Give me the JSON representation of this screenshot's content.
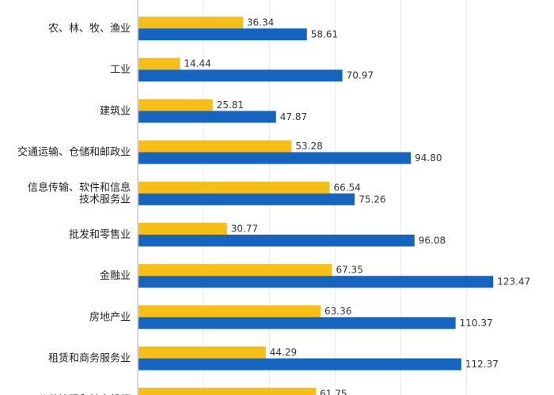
{
  "colors": {
    "series_a": "#F7BE16",
    "series_b": "#1565C0"
  },
  "chart_data": {
    "type": "bar",
    "orientation": "horizontal",
    "categories": [
      "农、林、牧、渔业",
      "工业",
      "建筑业",
      "交通运输、仓储和邮政业",
      "信息传输、软件和信息技术服务业",
      "批发和零售业",
      "金融业",
      "房地产业",
      "租赁和商务服务业",
      "公共管理和社会组织"
    ],
    "category_lines": [
      [
        "农、林、牧、渔业"
      ],
      [
        "工业"
      ],
      [
        "建筑业"
      ],
      [
        "交通运输、仓储和邮政业"
      ],
      [
        "信息传输、软件和信息",
        "技术服务业"
      ],
      [
        "批发和零售业"
      ],
      [
        "金融业"
      ],
      [
        "房地产业"
      ],
      [
        "租赁和商务服务业"
      ],
      [
        "公共管理和社会组织"
      ]
    ],
    "series": [
      {
        "values": [
          36.34,
          14.44,
          25.81,
          53.28,
          66.54,
          30.77,
          67.35,
          63.36,
          44.29,
          61.75
        ]
      },
      {
        "values": [
          58.61,
          70.97,
          47.87,
          94.8,
          75.26,
          96.08,
          123.47,
          110.37,
          112.37,
          null
        ]
      }
    ],
    "value_labels": [
      [
        "36.34",
        "14.44",
        "25.81",
        "53.28",
        "66.54",
        "30.77",
        "67.35",
        "63.36",
        "44.29",
        "61.75"
      ],
      [
        "58.61",
        "70.97",
        "47.87",
        "94.80",
        "75.26",
        "96.08",
        "123.47",
        "110.37",
        "112.37",
        ""
      ]
    ],
    "xlim": [
      0,
      130
    ],
    "grid": true,
    "legend": "none",
    "title": "",
    "xlabel": "",
    "ylabel": ""
  }
}
